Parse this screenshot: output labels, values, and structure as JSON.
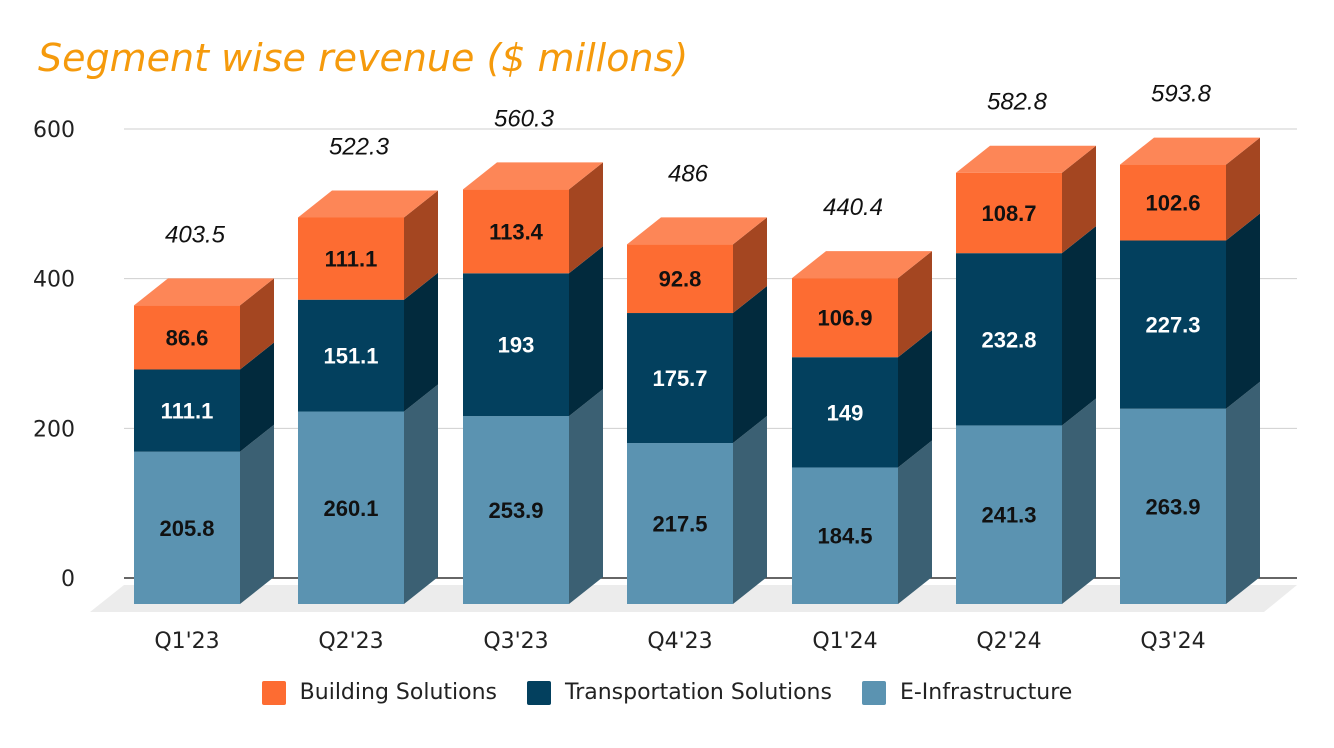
{
  "chart_data": {
    "type": "bar",
    "stacked": true,
    "three_d": true,
    "title": "Segment wise revenue ($ millons)",
    "categories": [
      "Q1'23",
      "Q2'23",
      "Q3'23",
      "Q4'23",
      "Q1'24",
      "Q2'24",
      "Q3'24"
    ],
    "series": [
      {
        "name": "E-Infrastructure",
        "color": "#5b93b1",
        "values": [
          205.8,
          260.1,
          253.9,
          217.5,
          184.5,
          241.3,
          263.9
        ]
      },
      {
        "name": "Transportation Solutions",
        "color": "#03405e",
        "values": [
          111.1,
          151.1,
          193,
          175.7,
          149,
          232.8,
          227.3
        ]
      },
      {
        "name": "Building Solutions",
        "color": "#fd6c32",
        "values": [
          86.6,
          111.1,
          113.4,
          92.8,
          106.9,
          108.7,
          102.6
        ]
      }
    ],
    "totals": [
      "403.5",
      "522.3",
      "560.3",
      "486",
      "440.4",
      "582.8",
      "593.8"
    ],
    "value_labels": [
      [
        "205.8",
        "260.1",
        "253.9",
        "217.5",
        "184.5",
        "241.3",
        "263.9"
      ],
      [
        "111.1",
        "151.1",
        "193",
        "175.7",
        "149",
        "232.8",
        "227.3"
      ],
      [
        "86.6",
        "111.1",
        "113.4",
        "92.8",
        "106.9",
        "108.7",
        "102.6"
      ]
    ],
    "yticks": [
      "0",
      "200",
      "400",
      "600"
    ],
    "ylim": [
      0,
      600
    ],
    "grid": true,
    "legend_position": "bottom"
  }
}
